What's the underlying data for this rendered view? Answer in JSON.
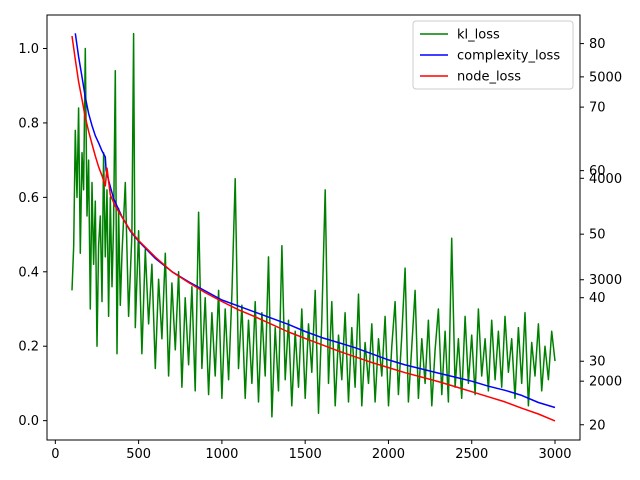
{
  "chart_data": {
    "type": "line",
    "x_axis": {
      "range": [
        -50,
        3150
      ],
      "ticks": [
        0,
        500,
        1000,
        1500,
        2000,
        2500,
        3000
      ]
    },
    "y_axis_left": {
      "range": [
        -0.052,
        1.09
      ],
      "ticks": [
        "0.0",
        "0.2",
        "0.4",
        "0.6",
        "0.8",
        "1.0"
      ]
    },
    "y_axis_right_1": {
      "range": [
        1420,
        5610
      ],
      "ticks": [
        "2000",
        "3000",
        "4000",
        "5000"
      ]
    },
    "y_axis_right_2": {
      "range": [
        17.6,
        84.5
      ],
      "ticks": [
        "20",
        "30",
        "40",
        "50",
        "60",
        "70",
        "80"
      ]
    },
    "legend": {
      "position": "upper right"
    },
    "series": [
      {
        "name": "kl_loss",
        "color": "#008000",
        "axis": "left",
        "x_start": 100,
        "x_end": 3000,
        "points": [
          [
            100,
            0.35
          ],
          [
            110,
            0.47
          ],
          [
            120,
            0.78
          ],
          [
            130,
            0.6
          ],
          [
            140,
            0.84
          ],
          [
            150,
            0.45
          ],
          [
            160,
            0.72
          ],
          [
            170,
            0.62
          ],
          [
            180,
            1.0
          ],
          [
            190,
            0.55
          ],
          [
            200,
            0.7
          ],
          [
            210,
            0.3
          ],
          [
            220,
            0.64
          ],
          [
            230,
            0.42
          ],
          [
            240,
            0.59
          ],
          [
            250,
            0.2
          ],
          [
            260,
            0.47
          ],
          [
            270,
            0.55
          ],
          [
            280,
            0.32
          ],
          [
            290,
            0.72
          ],
          [
            300,
            0.44
          ],
          [
            310,
            0.62
          ],
          [
            320,
            0.28
          ],
          [
            330,
            0.6
          ],
          [
            340,
            0.36
          ],
          [
            350,
            0.53
          ],
          [
            360,
            0.94
          ],
          [
            370,
            0.18
          ],
          [
            380,
            0.57
          ],
          [
            390,
            0.31
          ],
          [
            400,
            0.45
          ],
          [
            420,
            0.64
          ],
          [
            440,
            0.28
          ],
          [
            460,
            0.5
          ],
          [
            470,
            1.04
          ],
          [
            480,
            0.25
          ],
          [
            500,
            0.51
          ],
          [
            520,
            0.18
          ],
          [
            540,
            0.46
          ],
          [
            560,
            0.26
          ],
          [
            580,
            0.42
          ],
          [
            600,
            0.14
          ],
          [
            620,
            0.38
          ],
          [
            640,
            0.22
          ],
          [
            660,
            0.45
          ],
          [
            680,
            0.12
          ],
          [
            700,
            0.37
          ],
          [
            720,
            0.19
          ],
          [
            740,
            0.4
          ],
          [
            760,
            0.09
          ],
          [
            780,
            0.33
          ],
          [
            800,
            0.15
          ],
          [
            820,
            0.36
          ],
          [
            840,
            0.08
          ],
          [
            860,
            0.56
          ],
          [
            880,
            0.14
          ],
          [
            900,
            0.33
          ],
          [
            920,
            0.07
          ],
          [
            940,
            0.29
          ],
          [
            960,
            0.12
          ],
          [
            980,
            0.35
          ],
          [
            1000,
            0.06
          ],
          [
            1020,
            0.3
          ],
          [
            1040,
            0.11
          ],
          [
            1060,
            0.34
          ],
          [
            1080,
            0.65
          ],
          [
            1100,
            0.14
          ],
          [
            1120,
            0.31
          ],
          [
            1140,
            0.06
          ],
          [
            1160,
            0.27
          ],
          [
            1180,
            0.1
          ],
          [
            1200,
            0.32
          ],
          [
            1220,
            0.05
          ],
          [
            1240,
            0.29
          ],
          [
            1260,
            0.12
          ],
          [
            1280,
            0.44
          ],
          [
            1300,
            0.01
          ],
          [
            1320,
            0.25
          ],
          [
            1340,
            0.08
          ],
          [
            1360,
            0.47
          ],
          [
            1380,
            0.11
          ],
          [
            1400,
            0.27
          ],
          [
            1420,
            0.04
          ],
          [
            1440,
            0.24
          ],
          [
            1460,
            0.09
          ],
          [
            1480,
            0.3
          ],
          [
            1500,
            0.06
          ],
          [
            1520,
            0.26
          ],
          [
            1540,
            0.13
          ],
          [
            1560,
            0.35
          ],
          [
            1580,
            0.02
          ],
          [
            1600,
            0.27
          ],
          [
            1620,
            0.62
          ],
          [
            1640,
            0.1
          ],
          [
            1660,
            0.32
          ],
          [
            1680,
            0.04
          ],
          [
            1700,
            0.23
          ],
          [
            1720,
            0.11
          ],
          [
            1740,
            0.29
          ],
          [
            1760,
            0.05
          ],
          [
            1780,
            0.25
          ],
          [
            1800,
            0.09
          ],
          [
            1820,
            0.34
          ],
          [
            1840,
            0.04
          ],
          [
            1860,
            0.21
          ],
          [
            1880,
            0.1
          ],
          [
            1900,
            0.26
          ],
          [
            1920,
            0.05
          ],
          [
            1940,
            0.22
          ],
          [
            1960,
            0.12
          ],
          [
            1980,
            0.28
          ],
          [
            2000,
            0.04
          ],
          [
            2020,
            0.2
          ],
          [
            2040,
            0.32
          ],
          [
            2060,
            0.07
          ],
          [
            2080,
            0.23
          ],
          [
            2100,
            0.41
          ],
          [
            2120,
            0.05
          ],
          [
            2140,
            0.2
          ],
          [
            2160,
            0.35
          ],
          [
            2180,
            0.06
          ],
          [
            2200,
            0.22
          ],
          [
            2220,
            0.1
          ],
          [
            2240,
            0.27
          ],
          [
            2260,
            0.04
          ],
          [
            2280,
            0.19
          ],
          [
            2300,
            0.3
          ],
          [
            2320,
            0.07
          ],
          [
            2340,
            0.24
          ],
          [
            2360,
            0.05
          ],
          [
            2380,
            0.49
          ],
          [
            2400,
            0.09
          ],
          [
            2420,
            0.22
          ],
          [
            2440,
            0.06
          ],
          [
            2460,
            0.28
          ],
          [
            2480,
            0.1
          ],
          [
            2500,
            0.23
          ],
          [
            2520,
            0.07
          ],
          [
            2540,
            0.3
          ],
          [
            2560,
            0.12
          ],
          [
            2580,
            0.22
          ],
          [
            2600,
            0.08
          ],
          [
            2620,
            0.27
          ],
          [
            2640,
            0.11
          ],
          [
            2660,
            0.24
          ],
          [
            2680,
            0.09
          ],
          [
            2700,
            0.28
          ],
          [
            2720,
            0.13
          ],
          [
            2740,
            0.22
          ],
          [
            2760,
            0.06
          ],
          [
            2780,
            0.25
          ],
          [
            2800,
            0.1
          ],
          [
            2820,
            0.29
          ],
          [
            2840,
            0.04
          ],
          [
            2860,
            0.21
          ],
          [
            2880,
            0.12
          ],
          [
            2900,
            0.26
          ],
          [
            2920,
            0.08
          ],
          [
            2940,
            0.2
          ],
          [
            2960,
            0.11
          ],
          [
            2980,
            0.24
          ],
          [
            3000,
            0.16
          ]
        ]
      },
      {
        "name": "complexity_loss",
        "color": "#0000ff",
        "axis": "right_1",
        "points": [
          [
            120,
            5430
          ],
          [
            140,
            5200
          ],
          [
            160,
            5000
          ],
          [
            180,
            4800
          ],
          [
            200,
            4640
          ],
          [
            220,
            4520
          ],
          [
            240,
            4420
          ],
          [
            260,
            4350
          ],
          [
            280,
            4270
          ],
          [
            300,
            4210
          ],
          [
            305,
            4080
          ],
          [
            320,
            3980
          ],
          [
            350,
            3800
          ],
          [
            400,
            3620
          ],
          [
            450,
            3480
          ],
          [
            500,
            3380
          ],
          [
            600,
            3210
          ],
          [
            700,
            3080
          ],
          [
            800,
            2980
          ],
          [
            900,
            2890
          ],
          [
            1000,
            2800
          ],
          [
            1100,
            2740
          ],
          [
            1200,
            2680
          ],
          [
            1300,
            2620
          ],
          [
            1400,
            2560
          ],
          [
            1500,
            2490
          ],
          [
            1600,
            2430
          ],
          [
            1700,
            2380
          ],
          [
            1800,
            2330
          ],
          [
            1900,
            2270
          ],
          [
            2000,
            2210
          ],
          [
            2100,
            2160
          ],
          [
            2200,
            2120
          ],
          [
            2300,
            2080
          ],
          [
            2400,
            2040
          ],
          [
            2500,
            2000
          ],
          [
            2600,
            1950
          ],
          [
            2700,
            1910
          ],
          [
            2800,
            1860
          ],
          [
            2900,
            1790
          ],
          [
            3000,
            1740
          ]
        ]
      },
      {
        "name": "node_loss",
        "color": "#ff0000",
        "axis": "right_2",
        "points": [
          [
            100,
            81.2
          ],
          [
            120,
            77.5
          ],
          [
            140,
            74.0
          ],
          [
            160,
            71.2
          ],
          [
            180,
            68.4
          ],
          [
            200,
            66.2
          ],
          [
            220,
            64.2
          ],
          [
            240,
            62.3
          ],
          [
            260,
            60.6
          ],
          [
            280,
            59.2
          ],
          [
            300,
            57.6
          ],
          [
            310,
            60.4
          ],
          [
            330,
            56.2
          ],
          [
            360,
            54.4
          ],
          [
            400,
            52.7
          ],
          [
            450,
            50.6
          ],
          [
            500,
            49.0
          ],
          [
            600,
            46.4
          ],
          [
            700,
            44.1
          ],
          [
            800,
            42.4
          ],
          [
            900,
            40.8
          ],
          [
            1000,
            39.4
          ],
          [
            1100,
            38.1
          ],
          [
            1200,
            37.0
          ],
          [
            1300,
            35.8
          ],
          [
            1400,
            34.6
          ],
          [
            1500,
            33.6
          ],
          [
            1600,
            32.6
          ],
          [
            1700,
            31.6
          ],
          [
            1800,
            30.7
          ],
          [
            1900,
            29.8
          ],
          [
            2000,
            29.0
          ],
          [
            2100,
            28.2
          ],
          [
            2200,
            27.5
          ],
          [
            2300,
            26.8
          ],
          [
            2400,
            26.0
          ],
          [
            2500,
            25.2
          ],
          [
            2600,
            24.4
          ],
          [
            2700,
            23.6
          ],
          [
            2800,
            22.6
          ],
          [
            2900,
            21.7
          ],
          [
            3000,
            20.6
          ]
        ]
      }
    ]
  }
}
